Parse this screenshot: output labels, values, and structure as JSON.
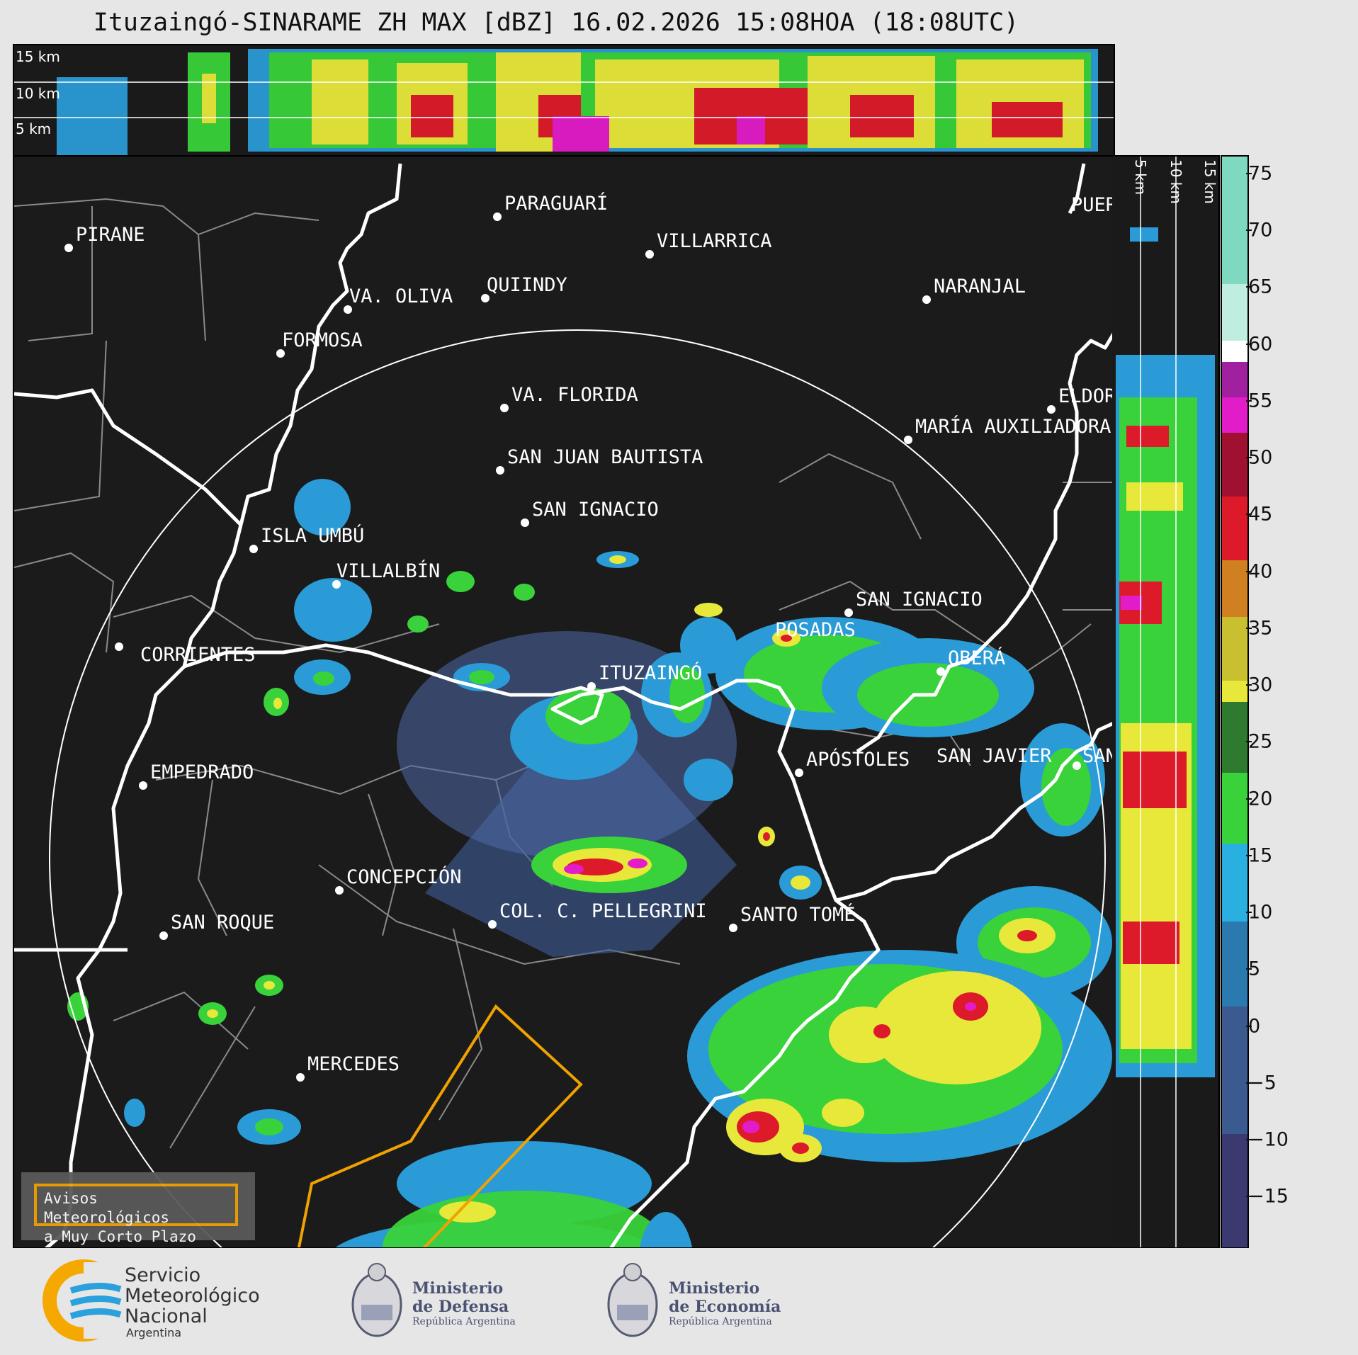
{
  "title": "Ituzaingó-SINARAME ZH MAX [dBZ] 16.02.2026 15:08HOA (18:08UTC)",
  "height_labels": [
    "15 km",
    "10 km",
    "5 km"
  ],
  "side_labels": [
    "5 km",
    "10 km",
    "15 km"
  ],
  "cities": [
    {
      "name": "PIRANE"
    },
    {
      "name": "PARAGUARÍ"
    },
    {
      "name": "VILLARRICA"
    },
    {
      "name": "VA. OLIVA"
    },
    {
      "name": "QUIINDY"
    },
    {
      "name": "NARANJAL"
    },
    {
      "name": "FORMOSA"
    },
    {
      "name": "VA. FLORIDA"
    },
    {
      "name": "ELDORADO"
    },
    {
      "name": "MARÍA AUXILIADORA"
    },
    {
      "name": "SAN JUAN BAUTISTA"
    },
    {
      "name": "SAN IGNACIO"
    },
    {
      "name": "ISLA UMBÚ"
    },
    {
      "name": "VILLALBÍN"
    },
    {
      "name": "SAN IGNACIO"
    },
    {
      "name": "POSADAS"
    },
    {
      "name": "CORRIENTES"
    },
    {
      "name": "OBERÁ"
    },
    {
      "name": "ITUZAINGÓ"
    },
    {
      "name": "EMPEDRADO"
    },
    {
      "name": "APÓSTOLES"
    },
    {
      "name": "SAN JAVIER"
    },
    {
      "name": "SAN"
    },
    {
      "name": "CONCEPCIÓN"
    },
    {
      "name": "COL. C. PELLEGRINI"
    },
    {
      "name": "SANTO TOMÉ"
    },
    {
      "name": "SAN ROQUE"
    },
    {
      "name": "MERCEDES"
    },
    {
      "name": "PUERTO"
    }
  ],
  "colorbar": {
    "unit": "dBZ",
    "ticks": [
      "75",
      "70",
      "65",
      "60",
      "55",
      "50",
      "45",
      "40",
      "35",
      "30",
      "25",
      "20",
      "15",
      "10",
      "5",
      "0",
      "−5",
      "−10",
      "−15"
    ],
    "min": -19,
    "max": 77
  },
  "warning_box": {
    "line1": "Avisos Meteorológicos",
    "line2": "a Muy Corto Plazo"
  },
  "logos": {
    "smn": [
      "Servicio",
      "Meteorológico",
      "Nacional",
      "Argentina"
    ],
    "defensa": [
      "Ministerio",
      "de Defensa",
      "República Argentina"
    ],
    "economia": [
      "Ministerio",
      "de Economía",
      "República Argentina"
    ]
  },
  "colors": {
    "background": "#1b1b1b",
    "warning_outline": "#f0a200",
    "river": "#ffffff",
    "boundary": "#8a8a8a"
  }
}
